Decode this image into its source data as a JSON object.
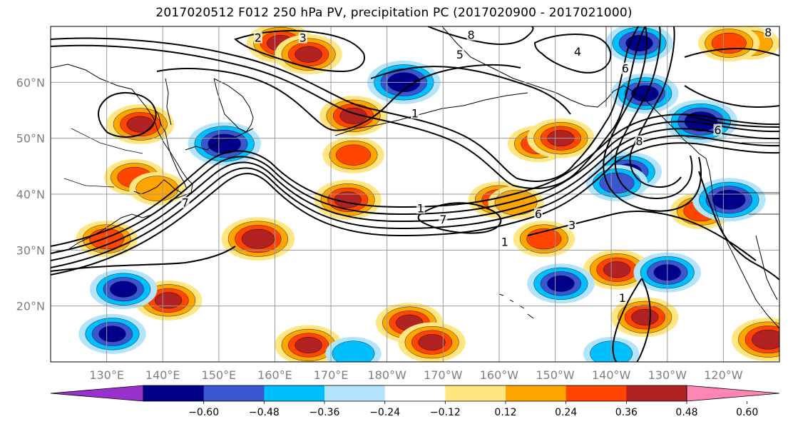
{
  "title": "2017020512 F012 250 hPa PV, precipitation PC (2017020900 - 2017021000)",
  "map": {
    "lon_range": [
      120,
      250
    ],
    "lat_range": [
      10,
      70
    ],
    "grid": true,
    "lat_ticks": [
      {
        "value": 20,
        "label": "20°N"
      },
      {
        "value": 30,
        "label": "30°N"
      },
      {
        "value": 40,
        "label": "40°N"
      },
      {
        "value": 50,
        "label": "50°N"
      },
      {
        "value": 60,
        "label": "60°N"
      }
    ],
    "lon_ticks": [
      {
        "value": 130,
        "label": "130°E"
      },
      {
        "value": 140,
        "label": "140°E"
      },
      {
        "value": 150,
        "label": "150°E"
      },
      {
        "value": 160,
        "label": "160°E"
      },
      {
        "value": 170,
        "label": "170°E"
      },
      {
        "value": 180,
        "label": "180°W"
      },
      {
        "value": 190,
        "label": "170°W"
      },
      {
        "value": 200,
        "label": "160°W"
      },
      {
        "value": 210,
        "label": "150°W"
      },
      {
        "value": 220,
        "label": "140°W"
      },
      {
        "value": 230,
        "label": "130°W"
      },
      {
        "value": 240,
        "label": "120°W"
      }
    ],
    "contour_labels": [
      {
        "text": "2",
        "lon": 157,
        "lat": 67.5
      },
      {
        "text": "3",
        "lon": 165,
        "lat": 67.5
      },
      {
        "text": "4",
        "lon": 214,
        "lat": 65
      },
      {
        "text": "5",
        "lon": 193,
        "lat": 64.5
      },
      {
        "text": "6",
        "lon": 222.5,
        "lat": 62
      },
      {
        "text": "6",
        "lon": 239,
        "lat": 51
      },
      {
        "text": "6",
        "lon": 207,
        "lat": 36
      },
      {
        "text": "7",
        "lon": 144,
        "lat": 38
      },
      {
        "text": "7",
        "lon": 190,
        "lat": 35
      },
      {
        "text": "1",
        "lon": 185,
        "lat": 54
      },
      {
        "text": "1",
        "lon": 186,
        "lat": 37
      },
      {
        "text": "1",
        "lon": 201,
        "lat": 31
      },
      {
        "text": "1",
        "lon": 222,
        "lat": 21
      },
      {
        "text": "3",
        "lon": 213,
        "lat": 34
      },
      {
        "text": "8",
        "lon": 225,
        "lat": 49
      },
      {
        "text": "8",
        "lon": 248,
        "lat": 68.5
      },
      {
        "text": "8",
        "lon": 195,
        "lat": 68
      }
    ]
  },
  "colorbar": {
    "colors": [
      "#9932cc",
      "#00008b",
      "#3a57cf",
      "#00bfff",
      "#b2e4fb",
      "#ffffff",
      "#ffe680",
      "#ffa500",
      "#ff4500",
      "#b22222",
      "#ff85b4"
    ],
    "tick_labels": [
      "−0.60",
      "−0.48",
      "−0.36",
      "−0.24",
      "−0.12",
      "0.12",
      "0.24",
      "0.36",
      "0.48",
      "0.60"
    ]
  },
  "precip_shading": [
    {
      "lon": 161,
      "lat": 67,
      "level": 2
    },
    {
      "lon": 166,
      "lat": 65,
      "level": 2
    },
    {
      "lon": 174,
      "lat": 54,
      "level": 2
    },
    {
      "lon": 174,
      "lat": 47,
      "level": 1
    },
    {
      "lon": 173,
      "lat": 39,
      "level": 2
    },
    {
      "lon": 135,
      "lat": 43,
      "level": 1
    },
    {
      "lon": 139,
      "lat": 41,
      "level": 0
    },
    {
      "lon": 130,
      "lat": 32,
      "level": 1
    },
    {
      "lon": 136,
      "lat": 52.5,
      "level": 2
    },
    {
      "lon": 200,
      "lat": 39,
      "level": 1
    },
    {
      "lon": 203,
      "lat": 38.5,
      "level": 0
    },
    {
      "lon": 207,
      "lat": 49,
      "level": 1
    },
    {
      "lon": 211,
      "lat": 50,
      "level": 2
    },
    {
      "lon": 208,
      "lat": 32,
      "level": 1
    },
    {
      "lon": 236,
      "lat": 37,
      "level": 1
    },
    {
      "lon": 245,
      "lat": 67,
      "level": 0
    },
    {
      "lon": 241,
      "lat": 67,
      "level": 1
    },
    {
      "lon": 184,
      "lat": 17,
      "level": 2
    },
    {
      "lon": 188,
      "lat": 13.5,
      "level": 2
    },
    {
      "lon": 141,
      "lat": 21,
      "level": 2
    },
    {
      "lon": 166,
      "lat": 13,
      "level": 2
    },
    {
      "lon": 221,
      "lat": 26.5,
      "level": 2
    },
    {
      "lon": 226,
      "lat": 18,
      "level": 2
    },
    {
      "lon": 157,
      "lat": 32,
      "level": 3
    },
    {
      "lon": 248,
      "lat": 14,
      "level": 3
    }
  ],
  "precip_negative": [
    {
      "lon": 223,
      "lat": 44,
      "level": 2
    },
    {
      "lon": 221,
      "lat": 42,
      "level": 1
    },
    {
      "lon": 225,
      "lat": 67,
      "level": 2
    },
    {
      "lon": 226,
      "lat": 58,
      "level": 2
    },
    {
      "lon": 211,
      "lat": 24,
      "level": 2
    },
    {
      "lon": 230,
      "lat": 26,
      "level": 2
    },
    {
      "lon": 131,
      "lat": 15,
      "level": 2
    },
    {
      "lon": 133,
      "lat": 23,
      "level": 2
    },
    {
      "lon": 174,
      "lat": 11.5,
      "level": 0
    },
    {
      "lon": 220,
      "lat": 11.5,
      "level": 0
    },
    {
      "lon": 183,
      "lat": 60,
      "level": 3
    },
    {
      "lon": 151,
      "lat": 49,
      "level": 3
    },
    {
      "lon": 241,
      "lat": 39,
      "level": 3
    },
    {
      "lon": 236,
      "lat": 53,
      "level": 3
    }
  ]
}
